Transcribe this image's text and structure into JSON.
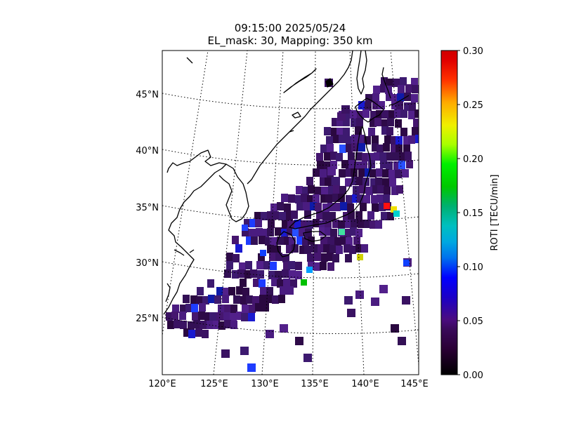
{
  "title": "09:15:00 2025/05/24",
  "subtitle": "EL_mask: 30, Mapping: 350 km",
  "map": {
    "lon_range": [
      120,
      145
    ],
    "lat_range": [
      20,
      49
    ],
    "lat_labels": [
      "25°N",
      "30°N",
      "35°N",
      "40°N",
      "45°N"
    ],
    "lon_labels": [
      "120°E",
      "125°E",
      "130°E",
      "135°E",
      "140°E",
      "145°E"
    ],
    "projection": "conic",
    "graticule": "dotted"
  },
  "colorbar": {
    "label": "ROTI [TECU/min]",
    "min": 0.0,
    "max": 0.3,
    "ticks": [
      "0.00",
      "0.05",
      "0.10",
      "0.15",
      "0.20",
      "0.25",
      "0.30"
    ],
    "colormap": "nipy_spectral"
  }
}
